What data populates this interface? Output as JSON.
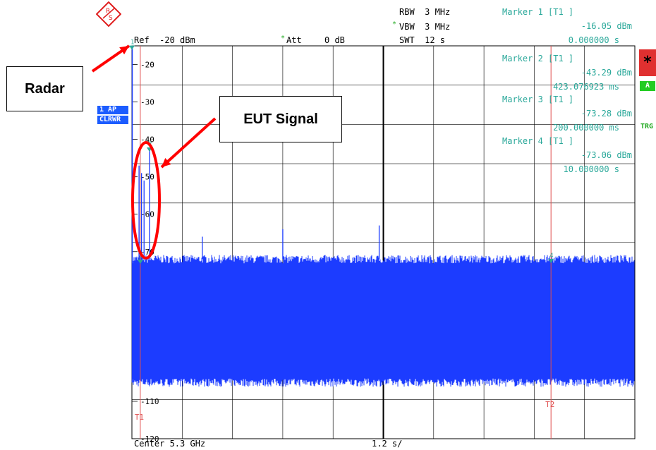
{
  "header": {
    "ref": "Ref  -20 dBm",
    "att_label": "Att",
    "att_value": "0 dB",
    "rbw": "RBW  3 MHz",
    "vbw": "VBW  3 MHz",
    "swt": "SWT  12 s",
    "star": "*"
  },
  "markers": [
    {
      "title": "Marker 1 [T1 ]",
      "level": "-16.05 dBm",
      "position": "0.000000 s"
    },
    {
      "title": "Marker 2 [T1 ]",
      "level": "-43.29 dBm",
      "position": "423.076923 ms"
    },
    {
      "title": "Marker 3 [T1 ]",
      "level": "-73.28 dBm",
      "position": "200.000000 ms"
    },
    {
      "title": "Marker 4 [T1 ]",
      "level": "-73.06 dBm",
      "position": "10.000000 s"
    }
  ],
  "badges": {
    "trace": "1 AP",
    "mode": "CLRWR"
  },
  "side_labels": {
    "star": "*",
    "a": "A",
    "trg": "TRG"
  },
  "callouts": {
    "radar": "Radar",
    "eut": "EUT Signal"
  },
  "footer": {
    "center": "Center 5.3 GHz",
    "span": "1.2 s/"
  },
  "colors": {
    "trace": "#1c3cff",
    "marker_text": "#2aa89a",
    "grid": "#000000",
    "annotation": "#ff0000",
    "t_line": "#e05050"
  },
  "chart_data": {
    "type": "line",
    "xlabel": "",
    "ylabel": "",
    "y_ticks": [
      -20,
      -30,
      -40,
      -50,
      -60,
      -70,
      -80,
      -90,
      -100,
      -110,
      -120
    ],
    "y_tick_labels": [
      "-20",
      "-30",
      "-40",
      "-50",
      "-60",
      "-70",
      "",
      "",
      "",
      "-110",
      "-120"
    ],
    "ylim": [
      -120,
      -15
    ],
    "xlim": [
      0,
      12
    ],
    "x_unit": "s",
    "noise_floor_upper_dbm": -72,
    "noise_floor_lower_dbm": -105,
    "radar_pulses": [
      {
        "x": 0.17,
        "y": -47
      },
      {
        "x": 0.23,
        "y": -49
      },
      {
        "x": 0.29,
        "y": -51
      },
      {
        "x": 0.42,
        "y": -43
      }
    ],
    "eut_spikes": [
      {
        "x": 1.68,
        "y": -66
      },
      {
        "x": 3.6,
        "y": -64
      },
      {
        "x": 5.9,
        "y": -63
      }
    ],
    "trace_lines": [
      {
        "label": "T1",
        "x": 0.2
      },
      {
        "label": "T2",
        "x": 10.0
      }
    ],
    "marker_points": [
      {
        "label": "1",
        "x": 0.0,
        "y": -16.05
      },
      {
        "label": "2",
        "x": 0.42,
        "y": -43.29
      },
      {
        "label": "3",
        "x": 0.2,
        "y": -73.28
      },
      {
        "label": "4",
        "x": 10.0,
        "y": -73.06
      }
    ],
    "grid": true
  }
}
